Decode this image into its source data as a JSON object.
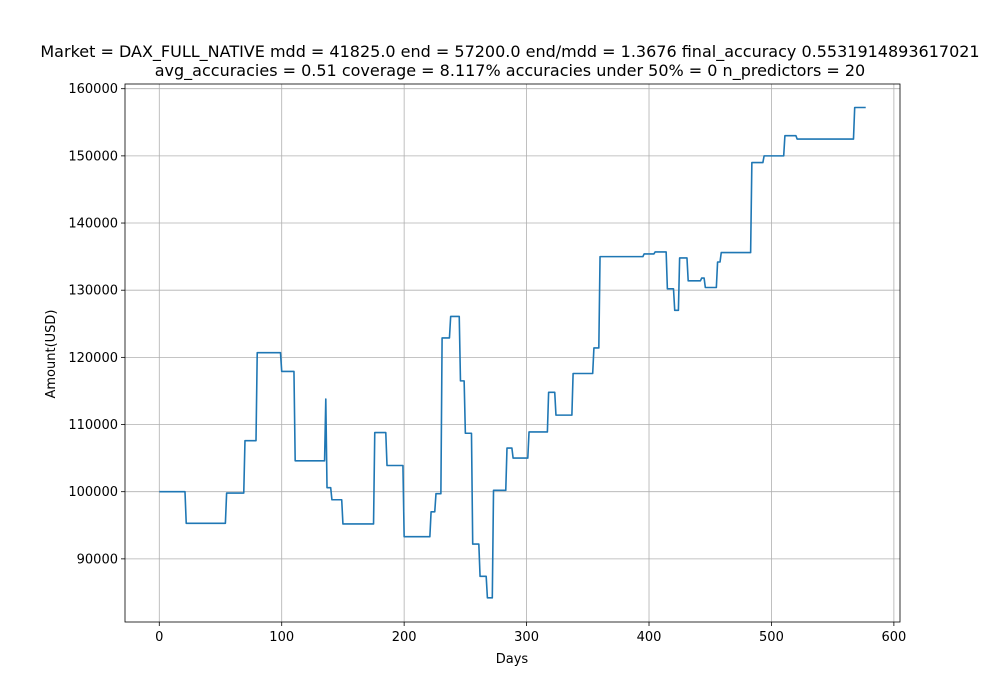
{
  "chart_data": {
    "type": "line",
    "title_line1": "Market = DAX_FULL_NATIVE mdd = 41825.0 end = 57200.0 end/mdd = 1.3676 final_accuracy 0.5531914893617021",
    "title_line2": "avg_accuracies = 0.51 coverage = 8.117%  accuracies under 50% = 0 n_predictors = 20",
    "xlabel": "Days",
    "ylabel": "Amount(USD)",
    "xlim": [
      -28,
      605
    ],
    "ylim": [
      80600,
      160700
    ],
    "xticks": [
      0,
      100,
      200,
      300,
      400,
      500,
      600
    ],
    "yticks": [
      90000,
      100000,
      110000,
      120000,
      130000,
      140000,
      150000,
      160000
    ],
    "grid": true,
    "line_color": "#1f77b4",
    "series": [
      {
        "x": [
          0,
          21,
          22,
          54,
          55,
          69,
          70,
          79,
          80,
          99,
          100,
          110,
          111,
          135,
          136,
          137,
          138,
          140,
          141,
          149,
          150,
          175,
          176,
          185,
          186,
          199,
          200,
          221,
          222,
          225,
          226,
          230,
          231,
          237,
          238,
          245,
          246,
          249,
          250,
          255,
          256,
          261,
          262,
          267,
          268,
          272,
          273,
          283,
          284,
          288,
          289,
          301,
          302,
          317,
          318,
          323,
          324,
          337,
          338,
          354,
          355,
          359,
          360,
          395,
          396,
          404,
          405,
          414,
          415,
          420,
          421,
          424,
          425,
          431,
          432,
          442,
          443,
          445,
          446,
          455,
          456,
          458,
          459,
          483,
          484,
          493,
          494,
          510,
          511,
          520,
          521,
          567,
          568,
          577
        ],
        "y": [
          100000,
          100000,
          95300,
          95300,
          99800,
          99800,
          107600,
          107600,
          120700,
          120700,
          117900,
          117900,
          104600,
          104600,
          113800,
          100600,
          100600,
          100600,
          98800,
          98800,
          95200,
          95200,
          108800,
          108800,
          103900,
          103900,
          93300,
          93300,
          97000,
          97000,
          99700,
          99700,
          122900,
          122900,
          126100,
          126100,
          116500,
          116500,
          108700,
          108700,
          92200,
          92200,
          87400,
          87400,
          84200,
          84200,
          100200,
          100200,
          106500,
          106500,
          105000,
          105000,
          108900,
          108900,
          114800,
          114800,
          111400,
          111400,
          117600,
          117600,
          121400,
          121400,
          135000,
          135000,
          135400,
          135400,
          135700,
          135700,
          130200,
          130200,
          127000,
          127000,
          134800,
          134800,
          131400,
          131400,
          131800,
          131800,
          130400,
          130400,
          134200,
          134200,
          135600,
          135600,
          149000,
          149000,
          150000,
          150000,
          153000,
          153000,
          152500,
          152500,
          157200,
          157200
        ]
      }
    ]
  }
}
